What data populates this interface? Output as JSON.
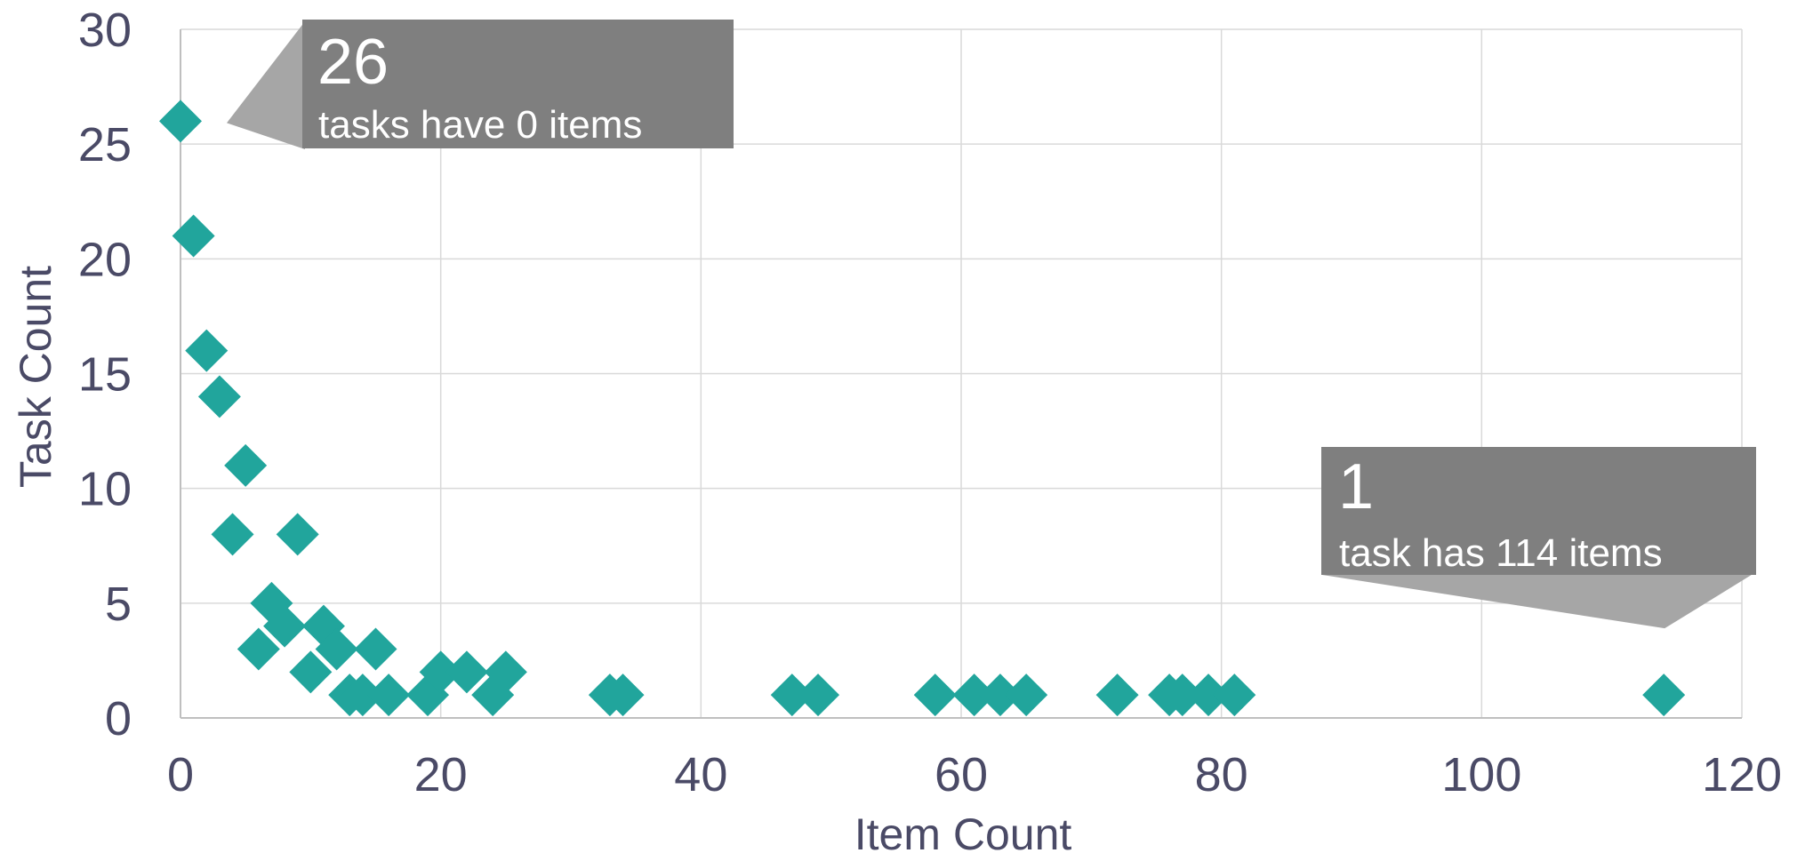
{
  "chart_data": {
    "type": "scatter",
    "title": "",
    "xlabel": "Item Count",
    "ylabel": "Task Count",
    "xlim": [
      0,
      120
    ],
    "ylim": [
      0,
      30
    ],
    "x_ticks": [
      0,
      20,
      40,
      60,
      80,
      100,
      120
    ],
    "y_ticks": [
      0,
      5,
      10,
      15,
      20,
      25,
      30
    ],
    "grid": true,
    "legend": "none",
    "marker": "diamond",
    "color": "#21a59c",
    "points": [
      {
        "x": 0,
        "y": 26
      },
      {
        "x": 1,
        "y": 21
      },
      {
        "x": 2,
        "y": 16
      },
      {
        "x": 3,
        "y": 14
      },
      {
        "x": 4,
        "y": 8
      },
      {
        "x": 5,
        "y": 11
      },
      {
        "x": 6,
        "y": 3
      },
      {
        "x": 7,
        "y": 5
      },
      {
        "x": 8,
        "y": 4
      },
      {
        "x": 9,
        "y": 8
      },
      {
        "x": 10,
        "y": 2
      },
      {
        "x": 11,
        "y": 4
      },
      {
        "x": 12,
        "y": 3
      },
      {
        "x": 13,
        "y": 1
      },
      {
        "x": 14,
        "y": 1
      },
      {
        "x": 15,
        "y": 3
      },
      {
        "x": 16,
        "y": 1
      },
      {
        "x": 19,
        "y": 1
      },
      {
        "x": 20,
        "y": 2
      },
      {
        "x": 22,
        "y": 2
      },
      {
        "x": 24,
        "y": 1
      },
      {
        "x": 25,
        "y": 2
      },
      {
        "x": 33,
        "y": 1
      },
      {
        "x": 34,
        "y": 1
      },
      {
        "x": 47,
        "y": 1
      },
      {
        "x": 49,
        "y": 1
      },
      {
        "x": 58,
        "y": 1
      },
      {
        "x": 61,
        "y": 1
      },
      {
        "x": 63,
        "y": 1
      },
      {
        "x": 65,
        "y": 1
      },
      {
        "x": 72,
        "y": 1
      },
      {
        "x": 76,
        "y": 1
      },
      {
        "x": 77,
        "y": 1
      },
      {
        "x": 79,
        "y": 1
      },
      {
        "x": 81,
        "y": 1
      },
      {
        "x": 114,
        "y": 1
      }
    ],
    "annotations": [
      {
        "number": "26",
        "text": "tasks have 0 items",
        "target": {
          "x": 0,
          "y": 26
        }
      },
      {
        "number": "1",
        "text": "task has 114 items",
        "target": {
          "x": 114,
          "y": 1
        }
      }
    ]
  },
  "colors": {
    "marker": "#21a59c",
    "callout_box": "#7f7f7f",
    "callout_pointer": "#a6a6a6",
    "text": "#4a4a66",
    "grid": "#d9d9d9"
  }
}
